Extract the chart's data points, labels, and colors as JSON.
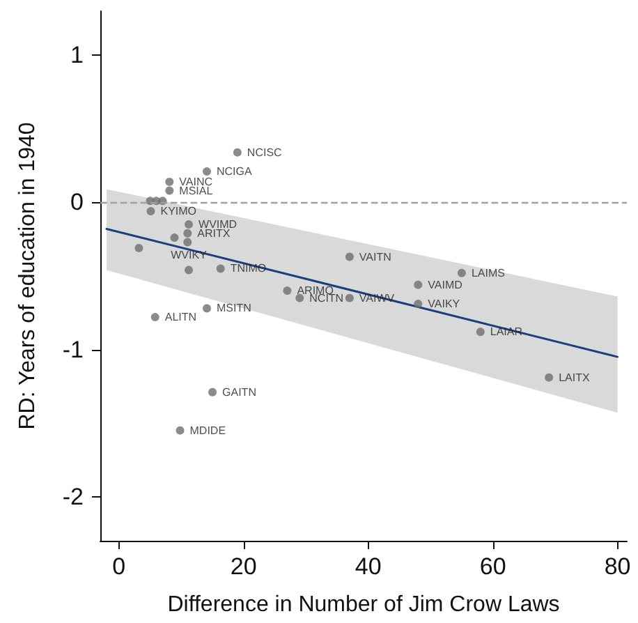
{
  "chart_data": {
    "type": "scatter",
    "xlabel": "Difference in Number of Jim Crow Laws",
    "ylabel": "RD: Years of education in 1940",
    "xlim": [
      -3,
      81.5
    ],
    "ylim": [
      -2.3,
      1.3
    ],
    "xticks": [
      0,
      20,
      40,
      60,
      80
    ],
    "yticks": [
      -2,
      -1,
      0,
      1
    ],
    "grid": false,
    "marker": "circle",
    "ref_lines": [
      {
        "axis": "y",
        "value": 0,
        "color": "#a0a0a0",
        "line_style": "dashed"
      }
    ],
    "series": [
      {
        "color": "#6e6e6e",
        "x": [
          19,
          14.1,
          8.1,
          8.1,
          5,
          6,
          7,
          5.1,
          11.2,
          11,
          8.9,
          11,
          3.2,
          11.2,
          16.3,
          5.8,
          14.1,
          27,
          29,
          37,
          37,
          48,
          55,
          48,
          58,
          69,
          15,
          9.8
        ],
        "values": [
          0.34,
          0.21,
          0.14,
          0.08,
          0.01,
          0.01,
          0.01,
          -0.06,
          -0.15,
          -0.21,
          -0.24,
          -0.27,
          -0.31,
          -0.46,
          -0.45,
          -0.78,
          -0.72,
          -0.6,
          -0.65,
          -0.65,
          -0.37,
          -0.56,
          -0.48,
          -0.69,
          -0.88,
          -1.19,
          -1.29,
          -1.55
        ],
        "value_labels": [
          "NCISC",
          "NCIGA",
          "VAINC",
          "MSIAL",
          null,
          null,
          null,
          "KYIMO",
          "WVIMD",
          "ARITX",
          null,
          null,
          null,
          "WVIKY",
          "TNIMO",
          "ALITN",
          "MSITN",
          "ARIMO",
          "NCITN",
          "VAIWV",
          "VAITN",
          "VAIMD",
          "LAIMS",
          "VAIKY",
          "LAIAR",
          "LAITX",
          "GAITN",
          "MDIDE"
        ]
      },
      {
        "type": "line",
        "color": "#1a3f7a",
        "marker": "none",
        "x": [
          -2,
          80
        ],
        "values": [
          -0.18,
          -1.05
        ],
        "lower": [
          -0.46,
          -1.43
        ],
        "upper": [
          0.09,
          -0.64
        ]
      }
    ]
  }
}
